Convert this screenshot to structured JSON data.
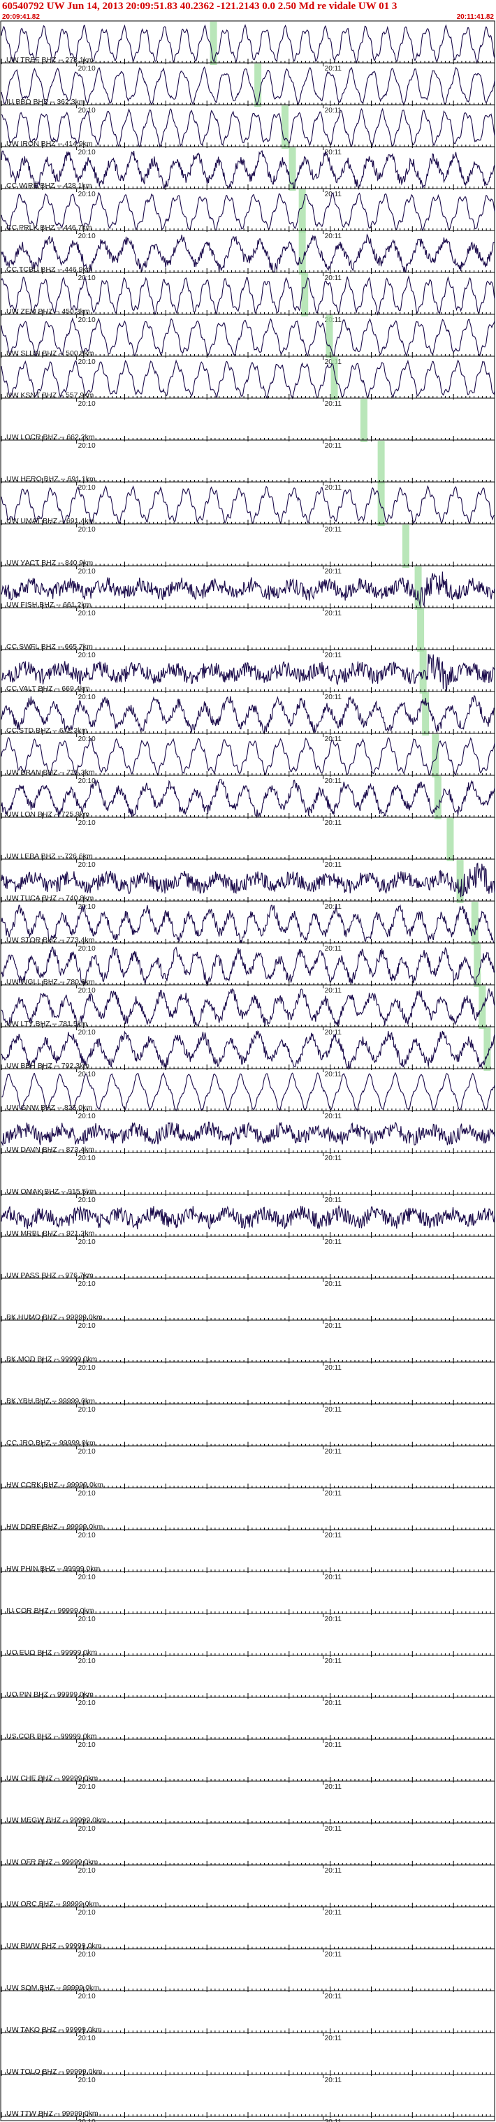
{
  "header": {
    "title": "60540792 UW Jun 14, 2013 20:09:51.83    40.2362  -121.2143   0.0  2.50  Md  re  vidale  UW  01    3",
    "start_time": "20:09:41.82",
    "end_time": "20:11:41.82"
  },
  "colors": {
    "header_red": "#d40000",
    "trace": "#1a0a4a",
    "pick_marker": "#a8e0a8",
    "axis": "#000000"
  },
  "chart_data": {
    "type": "line",
    "time_labels": [
      "20:10",
      "20:11"
    ],
    "tracks": [
      {
        "label": "UW TREF BHZ -- 278.1km",
        "trace": "lowfreq",
        "pick": 0.43
      },
      {
        "label": "IU BBO BHZ -- 362.3km",
        "trace": "lowfreq",
        "pick": 0.52
      },
      {
        "label": "UW IRON BHZ -- 414.9km",
        "trace": "lowfreq",
        "pick": 0.575
      },
      {
        "label": "CC WIRE BHZ -- 428.1km",
        "trace": "mixed",
        "pick": 0.59
      },
      {
        "label": "CC PRLK BHZ -- 446.7km",
        "trace": "lowfreq",
        "pick": 0.61
      },
      {
        "label": "CC TCBU BHZ -- 446.9km",
        "trace": "mixed",
        "pick": 0.61
      },
      {
        "label": "UW ZEM BHZ -- 450.3km",
        "trace": "lowfreq",
        "pick": 0.615
      },
      {
        "label": "UW SLUN BHZ -- 500.8km",
        "trace": "lowfreq",
        "pick": 0.665
      },
      {
        "label": "UW KSNT BHZ -- 557.9km",
        "trace": "lowfreq",
        "pick": 0.675
      },
      {
        "label": "UW LOCR BHZ -- 662.2km",
        "trace": "empty",
        "pick": 0.735
      },
      {
        "label": "UW HERO BHZ -- 691.1km",
        "trace": "empty",
        "pick": 0.77
      },
      {
        "label": "UW UMAT BHZ -- 691.4km",
        "trace": "lowfreq",
        "pick": 0.77
      },
      {
        "label": "UW YACT BHZ -- 840.9km",
        "trace": "empty",
        "pick": 0.82
      },
      {
        "label": "UW FISH BHZ -- 661.2km",
        "trace": "highfreq",
        "pick": 0.845
      },
      {
        "label": "CC SWFL BHZ -- 665.7km",
        "trace": "empty",
        "pick": 0.85
      },
      {
        "label": "CC VALT BHZ -- 669.4km",
        "trace": "highfreq",
        "pick": 0.855
      },
      {
        "label": "CC STD BHZ -- 672.3km",
        "trace": "mixed",
        "pick": 0.86
      },
      {
        "label": "UW BRAN BHZ -- 715.3km",
        "trace": "lowfreq",
        "pick": 0.88
      },
      {
        "label": "UW LON BHZ -- 725.9km",
        "trace": "mixed",
        "pick": 0.885
      },
      {
        "label": "UW LEBA BHZ -- 726.6km",
        "trace": "empty",
        "pick": 0.91
      },
      {
        "label": "UW TUCA BHZ -- 740.8km",
        "trace": "highfreq",
        "pick": 0.93
      },
      {
        "label": "UW STOR BHZ -- 773.4km",
        "trace": "mixed",
        "pick": 0.96
      },
      {
        "label": "UW WGLL BHZ -- 780.6km",
        "trace": "mixed",
        "pick": 0.965
      },
      {
        "label": "UW LTY BHZ -- 781.5km",
        "trace": "mixed",
        "pick": 0.975
      },
      {
        "label": "UW BBH BHZ -- 792.3km",
        "trace": "mixed",
        "pick": 0.985
      },
      {
        "label": "UW GNW BHZ -- 825.0km",
        "trace": "lowfreq",
        "pick": null
      },
      {
        "label": "UW DAVN BHZ -- 873.4km",
        "trace": "highfreq",
        "pick": null
      },
      {
        "label": "UW OMAK BHZ -- 915.5km",
        "trace": "empty",
        "pick": null
      },
      {
        "label": "UW MRBL BHZ -- 921.2km",
        "trace": "highfreq",
        "pick": null
      },
      {
        "label": "UW PASS BHZ -- 976.7km",
        "trace": "empty",
        "pick": null
      },
      {
        "label": "BK HUMO BHZ -- 99999.0km",
        "trace": "empty",
        "pick": null
      },
      {
        "label": "BK MOD BHZ -- 99999.0km",
        "trace": "empty",
        "pick": null
      },
      {
        "label": "BK YBH BHZ -- 99999.0km",
        "trace": "empty",
        "pick": null
      },
      {
        "label": "CC JRO BHZ -- 99999.0km",
        "trace": "empty",
        "pick": null
      },
      {
        "label": "HW CCRK BHZ -- 99999.0km",
        "trace": "empty",
        "pick": null
      },
      {
        "label": "HW DDRF BHZ -- 99999.0km",
        "trace": "empty",
        "pick": null
      },
      {
        "label": "HW PHIN BHZ -- 99999.0km",
        "trace": "empty",
        "pick": null
      },
      {
        "label": "IU COR BHZ -- 99999.0km",
        "trace": "empty",
        "pick": null
      },
      {
        "label": "UO EUO BHZ -- 99999.0km",
        "trace": "empty",
        "pick": null
      },
      {
        "label": "UO PIN BHZ -- 99999.0km",
        "trace": "empty",
        "pick": null
      },
      {
        "label": "US COR BHZ -- 99999.0km",
        "trace": "empty",
        "pick": null
      },
      {
        "label": "UW CHE BHZ -- 99999.0km",
        "trace": "empty",
        "pick": null
      },
      {
        "label": "UW MEGW BHZ -- 99999.0km",
        "trace": "empty",
        "pick": null
      },
      {
        "label": "UW OFR BHZ -- 99999.0km",
        "trace": "empty",
        "pick": null
      },
      {
        "label": "UW ORC BHZ -- 99999.0km",
        "trace": "empty",
        "pick": null
      },
      {
        "label": "UW RWW BHZ -- 99999.0km",
        "trace": "empty",
        "pick": null
      },
      {
        "label": "UW SQM BHZ -- 99999.0km",
        "trace": "empty",
        "pick": null
      },
      {
        "label": "UW TAKO BHZ -- 99999.0km",
        "trace": "empty",
        "pick": null
      },
      {
        "label": "UW TOLO BHZ -- 99999.0km",
        "trace": "empty",
        "pick": null
      },
      {
        "label": "UW TTW BHZ -- 99999.0km",
        "trace": "empty",
        "pick": null
      }
    ]
  }
}
